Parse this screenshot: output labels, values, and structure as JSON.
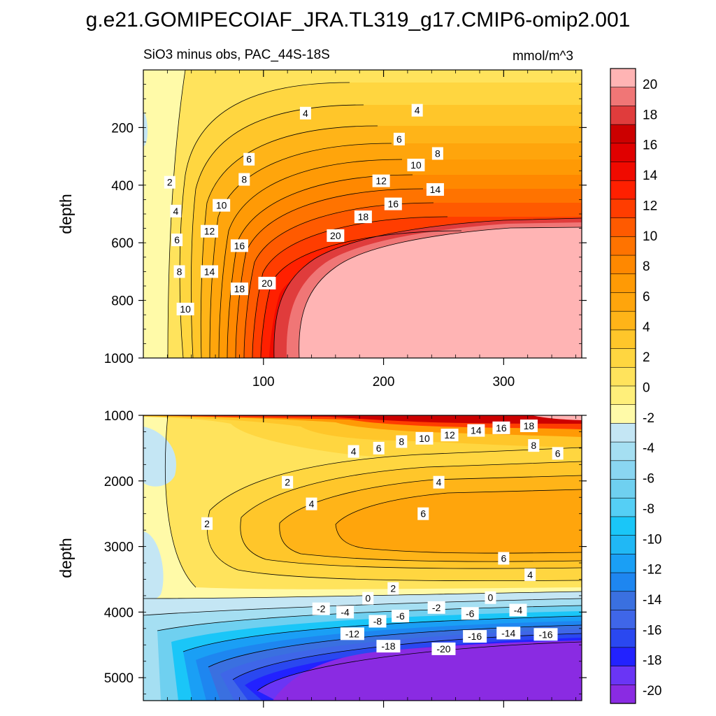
{
  "figure": {
    "title": "g.e21.GOMIPECOIAF_JRA.TL319_g17.CMIP6-omip2.001"
  },
  "chart_data": [
    {
      "type": "heatmap",
      "panel": "upper",
      "title_left": "SiO3 minus obs, PAC_44S-18S",
      "title_right": "mmol/m^3",
      "xlabel": "",
      "ylabel": "depth",
      "xlim": [
        0,
        365
      ],
      "ylim": [
        1000,
        0
      ],
      "x_ticks": [
        100,
        200,
        300
      ],
      "y_ticks": [
        200,
        400,
        600,
        800,
        1000
      ],
      "grid": false,
      "contour_labels": [
        {
          "x": 22,
          "depth": 390,
          "text": "2"
        },
        {
          "x": 27,
          "depth": 490,
          "text": "4"
        },
        {
          "x": 28,
          "depth": 590,
          "text": "6"
        },
        {
          "x": 30,
          "depth": 700,
          "text": "8"
        },
        {
          "x": 35,
          "depth": 830,
          "text": "10"
        },
        {
          "x": 55,
          "depth": 560,
          "text": "12"
        },
        {
          "x": 55,
          "depth": 700,
          "text": "14"
        },
        {
          "x": 80,
          "depth": 610,
          "text": "16"
        },
        {
          "x": 80,
          "depth": 760,
          "text": "18"
        },
        {
          "x": 103,
          "depth": 740,
          "text": "20"
        },
        {
          "x": 135,
          "depth": 150,
          "text": "4"
        },
        {
          "x": 228,
          "depth": 140,
          "text": "4"
        },
        {
          "x": 88,
          "depth": 310,
          "text": "6"
        },
        {
          "x": 84,
          "depth": 380,
          "text": "8"
        },
        {
          "x": 213,
          "depth": 240,
          "text": "6"
        },
        {
          "x": 245,
          "depth": 290,
          "text": "8"
        },
        {
          "x": 227,
          "depth": 330,
          "text": "10"
        },
        {
          "x": 65,
          "depth": 470,
          "text": "10"
        },
        {
          "x": 198,
          "depth": 385,
          "text": "12"
        },
        {
          "x": 243,
          "depth": 415,
          "text": "14"
        },
        {
          "x": 208,
          "depth": 465,
          "text": "16"
        },
        {
          "x": 183,
          "depth": 510,
          "text": "18"
        },
        {
          "x": 160,
          "depth": 575,
          "text": "20"
        }
      ]
    },
    {
      "type": "heatmap",
      "panel": "lower",
      "xlabel": "",
      "ylabel": "depth",
      "xlim": [
        0,
        365
      ],
      "ylim": [
        5350,
        1000
      ],
      "y_ticks": [
        1000,
        2000,
        3000,
        4000,
        5000
      ],
      "grid": false,
      "contour_labels": [
        {
          "x": 175,
          "depth": 1550,
          "text": "4"
        },
        {
          "x": 196,
          "depth": 1500,
          "text": "6"
        },
        {
          "x": 215,
          "depth": 1400,
          "text": "8"
        },
        {
          "x": 234,
          "depth": 1350,
          "text": "10"
        },
        {
          "x": 255,
          "depth": 1300,
          "text": "12"
        },
        {
          "x": 277,
          "depth": 1230,
          "text": "14"
        },
        {
          "x": 298,
          "depth": 1190,
          "text": "16"
        },
        {
          "x": 321,
          "depth": 1160,
          "text": "18"
        },
        {
          "x": 325,
          "depth": 1460,
          "text": "8"
        },
        {
          "x": 345,
          "depth": 1580,
          "text": "6"
        },
        {
          "x": 120,
          "depth": 2020,
          "text": "2"
        },
        {
          "x": 246,
          "depth": 2020,
          "text": "4"
        },
        {
          "x": 140,
          "depth": 2350,
          "text": "4"
        },
        {
          "x": 53,
          "depth": 2650,
          "text": "2"
        },
        {
          "x": 233,
          "depth": 2500,
          "text": "6"
        },
        {
          "x": 300,
          "depth": 3180,
          "text": "6"
        },
        {
          "x": 322,
          "depth": 3430,
          "text": "4"
        },
        {
          "x": 208,
          "depth": 3640,
          "text": "2"
        },
        {
          "x": 187,
          "depth": 3790,
          "text": "0"
        },
        {
          "x": 289,
          "depth": 3780,
          "text": "0"
        },
        {
          "x": 148,
          "depth": 3950,
          "text": "-2"
        },
        {
          "x": 168,
          "depth": 4000,
          "text": "-4"
        },
        {
          "x": 195,
          "depth": 4140,
          "text": "-8"
        },
        {
          "x": 214,
          "depth": 4060,
          "text": "-6"
        },
        {
          "x": 244,
          "depth": 3930,
          "text": "-2"
        },
        {
          "x": 272,
          "depth": 4020,
          "text": "-6"
        },
        {
          "x": 312,
          "depth": 3970,
          "text": "-4"
        },
        {
          "x": 174,
          "depth": 4330,
          "text": "-12"
        },
        {
          "x": 204,
          "depth": 4520,
          "text": "-18"
        },
        {
          "x": 250,
          "depth": 4560,
          "text": "-20"
        },
        {
          "x": 276,
          "depth": 4370,
          "text": "-16"
        },
        {
          "x": 304,
          "depth": 4320,
          "text": "-14"
        },
        {
          "x": 335,
          "depth": 4340,
          "text": "-16"
        }
      ]
    }
  ],
  "colorbar": {
    "levels": [
      -20,
      -18,
      -16,
      -14,
      -12,
      -10,
      -8,
      -6,
      -4,
      -2,
      0,
      2,
      4,
      6,
      8,
      10,
      12,
      14,
      16,
      18,
      20
    ],
    "colors": [
      "#8a2be2",
      "#6a35f5",
      "#2222ff",
      "#2a48f0",
      "#3f66e8",
      "#3a70e0",
      "#1e86f0",
      "#1a9ff5",
      "#20b8f5",
      "#1ac6f8",
      "#55cff5",
      "#6fd0f0",
      "#8ad6f2",
      "#a5dff2",
      "#c4e6f4",
      "#fffaa8",
      "#ffef7a",
      "#ffe35c",
      "#ffd640",
      "#ffc62a",
      "#ffb418",
      "#ffa50c",
      "#ff9a05",
      "#ff8800",
      "#ff7300",
      "#ff5a00",
      "#ff3d00",
      "#ff2000",
      "#f00a00",
      "#e00000",
      "#cc0000",
      "#e03c3c",
      "#f07676",
      "#ffb4b4"
    ],
    "tick_labels": [
      "20",
      "18",
      "16",
      "14",
      "12",
      "10",
      "8",
      "6",
      "4",
      "2",
      "0",
      "-2",
      "-4",
      "-6",
      "-8",
      "-10",
      "-12",
      "-14",
      "-16",
      "-18",
      "-20"
    ]
  }
}
